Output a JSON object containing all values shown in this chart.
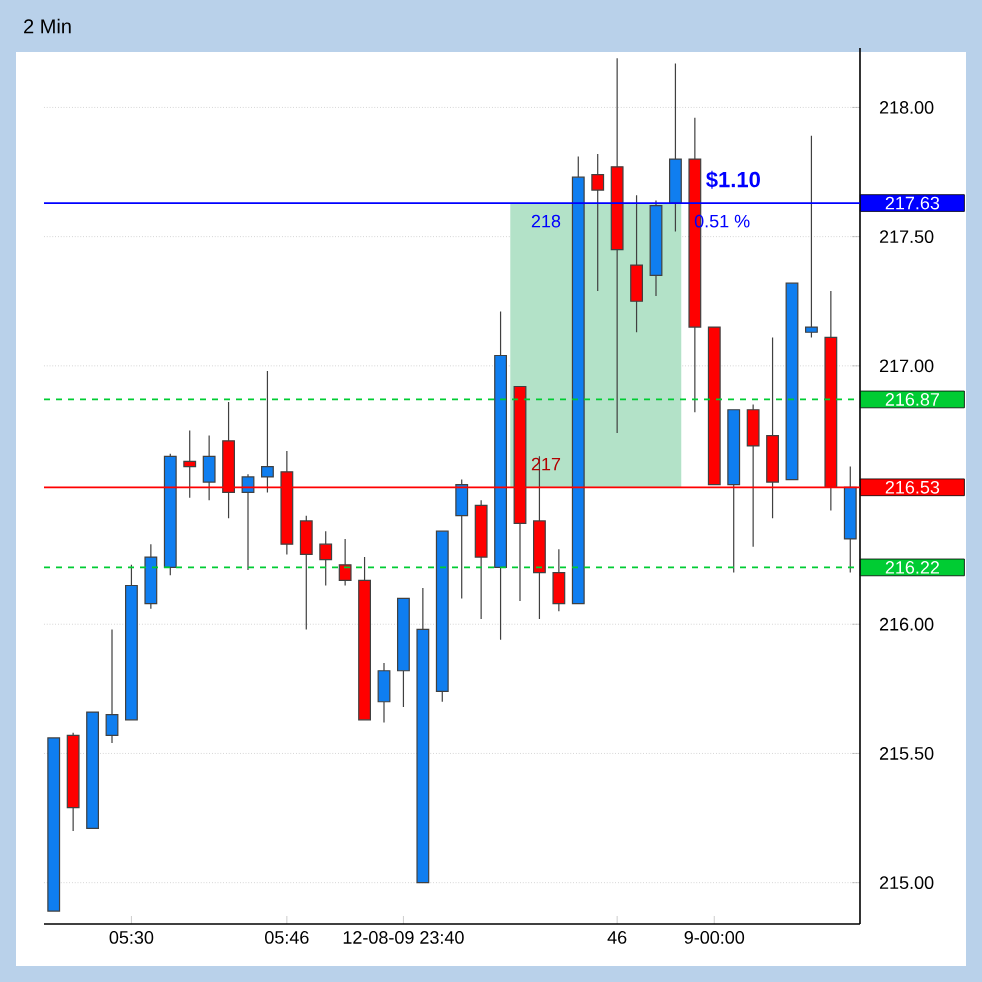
{
  "chart_data": {
    "type": "candlestick",
    "title": "2 Min",
    "categories": [
      null,
      null,
      null,
      null,
      "05:30",
      null,
      null,
      null,
      null,
      null,
      null,
      null,
      "05:46",
      null,
      null,
      null,
      null,
      null,
      "12-08-09 23:40",
      null,
      null,
      null,
      null,
      null,
      null,
      null,
      null,
      null,
      null,
      "46",
      null,
      null,
      null,
      null,
      "9-00:00",
      null,
      null,
      null,
      null,
      null,
      null,
      null
    ],
    "ohlc": [
      [
        214.89,
        215.56,
        214.89,
        215.56
      ],
      [
        215.57,
        215.58,
        215.2,
        215.29
      ],
      [
        215.21,
        215.66,
        215.21,
        215.66
      ],
      [
        215.57,
        215.98,
        215.54,
        215.65
      ],
      [
        215.63,
        216.23,
        215.63,
        216.15
      ],
      [
        216.08,
        216.31,
        216.06,
        216.26
      ],
      [
        216.22,
        216.66,
        216.19,
        216.65
      ],
      [
        216.63,
        216.75,
        216.49,
        216.61
      ],
      [
        216.55,
        216.73,
        216.48,
        216.65
      ],
      [
        216.71,
        216.86,
        216.41,
        216.51
      ],
      [
        216.51,
        216.58,
        216.21,
        216.57
      ],
      [
        216.57,
        216.98,
        216.51,
        216.61
      ],
      [
        216.59,
        216.67,
        216.27,
        216.31
      ],
      [
        216.4,
        216.42,
        215.98,
        216.27
      ],
      [
        216.31,
        216.36,
        216.15,
        216.25
      ],
      [
        216.23,
        216.33,
        216.15,
        216.17
      ],
      [
        216.17,
        216.26,
        215.63,
        215.63
      ],
      [
        215.7,
        215.85,
        215.62,
        215.82
      ],
      [
        215.82,
        216.1,
        215.68,
        216.1
      ],
      [
        215.0,
        216.14,
        215.0,
        215.98
      ],
      [
        215.74,
        216.36,
        215.7,
        216.36
      ],
      [
        216.42,
        216.56,
        216.1,
        216.54
      ],
      [
        216.46,
        216.48,
        216.02,
        216.26
      ],
      [
        216.22,
        217.21,
        215.94,
        217.04
      ],
      [
        216.92,
        216.92,
        216.09,
        216.39
      ],
      [
        216.4,
        216.65,
        216.02,
        216.2
      ],
      [
        216.2,
        216.29,
        216.05,
        216.08
      ],
      [
        216.08,
        217.81,
        216.08,
        217.73
      ],
      [
        217.74,
        217.82,
        217.29,
        217.68
      ],
      [
        217.77,
        218.19,
        216.74,
        217.45
      ],
      [
        217.39,
        217.66,
        217.13,
        217.25
      ],
      [
        217.35,
        217.64,
        217.27,
        217.62
      ],
      [
        217.63,
        218.17,
        217.52,
        217.8
      ],
      [
        217.8,
        217.96,
        216.82,
        217.15
      ],
      [
        217.15,
        217.15,
        216.54,
        216.54
      ],
      [
        216.54,
        216.83,
        216.2,
        216.83
      ],
      [
        216.83,
        216.85,
        216.3,
        216.69
      ],
      [
        216.73,
        217.11,
        216.41,
        216.55
      ],
      [
        216.56,
        217.32,
        216.56,
        217.32
      ],
      [
        217.15,
        217.89,
        217.11,
        217.13
      ],
      [
        217.11,
        217.29,
        216.44,
        216.53
      ],
      [
        216.33,
        216.61,
        216.2,
        216.53
      ]
    ],
    "colors": [
      "#0f7ef0",
      "#ff0000",
      "#0f7ef0",
      "#0f7ef0",
      "#0f7ef0",
      "#0f7ef0",
      "#0f7ef0",
      "#ff0000",
      "#0f7ef0",
      "#ff0000",
      "#0f7ef0",
      "#0f7ef0",
      "#ff0000",
      "#ff0000",
      "#ff0000",
      "#ff0000",
      "#ff0000",
      "#0f7ef0",
      "#0f7ef0",
      "#0f7ef0",
      "#0f7ef0",
      "#0f7ef0",
      "#ff0000",
      "#0f7ef0",
      "#ff0000",
      "#ff0000",
      "#ff0000",
      "#0f7ef0",
      "#ff0000",
      "#ff0000",
      "#ff0000",
      "#0f7ef0",
      "#0f7ef0",
      "#ff0000",
      "#ff0000",
      "#0f7ef0",
      "#ff0000",
      "#ff0000",
      "#0f7ef0",
      "#0f7ef0",
      "#ff0000",
      "#0f7ef0"
    ],
    "ylim": [
      214.84,
      218.23
    ],
    "yticks": [
      {
        "value": 215,
        "label": "215.00"
      },
      {
        "value": 215.5,
        "label": "215.50"
      },
      {
        "value": 216,
        "label": "216.00"
      },
      {
        "value": 217,
        "label": "217.00"
      },
      {
        "value": 217.5,
        "label": "217.50"
      },
      {
        "value": 218,
        "label": "218.00"
      }
    ],
    "grid": "y",
    "ref_lines": [
      {
        "axis": "y",
        "value": 217.63,
        "label": "217.63",
        "color": "#0000ff"
      },
      {
        "axis": "y",
        "value": 216.87,
        "label": "216.87",
        "color": "#00cc33",
        "line_style": "dashed"
      },
      {
        "axis": "y",
        "value": 216.53,
        "label": "216.53",
        "color": "#ff0000"
      },
      {
        "axis": "y",
        "value": 216.22,
        "label": "216.22",
        "color": "#00cc33",
        "line_style": "dashed"
      }
    ],
    "bands": [
      {
        "axis": "y",
        "from": 216.53,
        "to": 217.63,
        "color": "#b3e2c8"
      }
    ],
    "annotations": [
      "**$1.10**",
      "0.51 %",
      "218",
      "217"
    ]
  }
}
